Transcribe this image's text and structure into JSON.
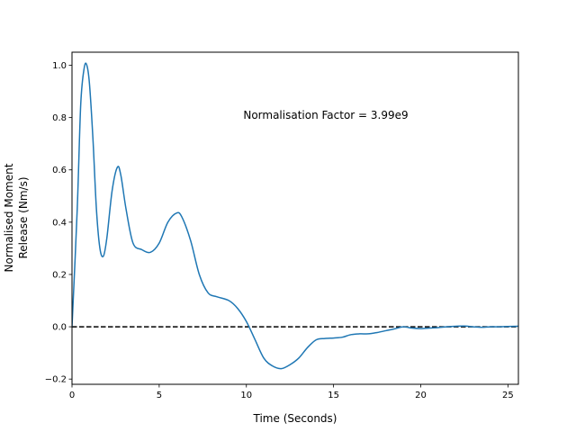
{
  "chart_data": {
    "type": "line",
    "title": "",
    "xlabel": "Time (Seconds)",
    "ylabel_lines": [
      "Normalised Moment",
      "Release (Nm/s)"
    ],
    "xlim": [
      0,
      25.6
    ],
    "ylim": [
      -0.22,
      1.05
    ],
    "xticks": [
      0,
      5,
      10,
      15,
      20,
      25
    ],
    "yticks": [
      -0.2,
      0.0,
      0.2,
      0.4,
      0.6,
      0.8,
      1.0
    ],
    "ytick_labels": [
      "−0.2",
      "0.0",
      "0.2",
      "0.4",
      "0.6",
      "0.8",
      "1.0"
    ],
    "annotation": "Normalisation Factor = 3.99e9",
    "reference_line": {
      "y": 0.0,
      "style": "dashed",
      "color": "#000000"
    },
    "series": [
      {
        "color": "#1f77b4",
        "x": [
          0,
          0.3,
          0.5,
          0.7,
          0.85,
          1.0,
          1.2,
          1.4,
          1.6,
          1.8,
          2.0,
          2.3,
          2.6,
          2.8,
          3.1,
          3.5,
          4.0,
          4.5,
          5.0,
          5.5,
          6.0,
          6.3,
          6.8,
          7.3,
          7.8,
          8.3,
          9.0,
          9.5,
          10.0,
          10.5,
          11.0,
          11.5,
          12.0,
          12.5,
          13.0,
          13.5,
          14.0,
          14.5,
          15.0,
          15.5,
          16.0,
          16.5,
          17.0,
          17.5,
          18.0,
          18.5,
          19.0,
          19.5,
          20.0,
          20.5,
          21.0,
          21.5,
          22.0,
          22.5,
          23.0,
          23.5,
          24.0,
          24.5,
          25.0,
          25.6
        ],
        "y": [
          0.0,
          0.45,
          0.85,
          0.99,
          1.0,
          0.93,
          0.72,
          0.45,
          0.3,
          0.27,
          0.34,
          0.52,
          0.61,
          0.58,
          0.45,
          0.32,
          0.295,
          0.285,
          0.32,
          0.4,
          0.435,
          0.42,
          0.33,
          0.2,
          0.13,
          0.115,
          0.1,
          0.07,
          0.02,
          -0.05,
          -0.12,
          -0.15,
          -0.16,
          -0.145,
          -0.12,
          -0.08,
          -0.05,
          -0.045,
          -0.043,
          -0.04,
          -0.03,
          -0.027,
          -0.027,
          -0.022,
          -0.015,
          -0.008,
          0.0,
          -0.005,
          -0.007,
          -0.005,
          -0.003,
          0.0,
          0.002,
          0.003,
          0.0,
          -0.002,
          0.0,
          0.0,
          0.001,
          0.002
        ]
      }
    ]
  }
}
